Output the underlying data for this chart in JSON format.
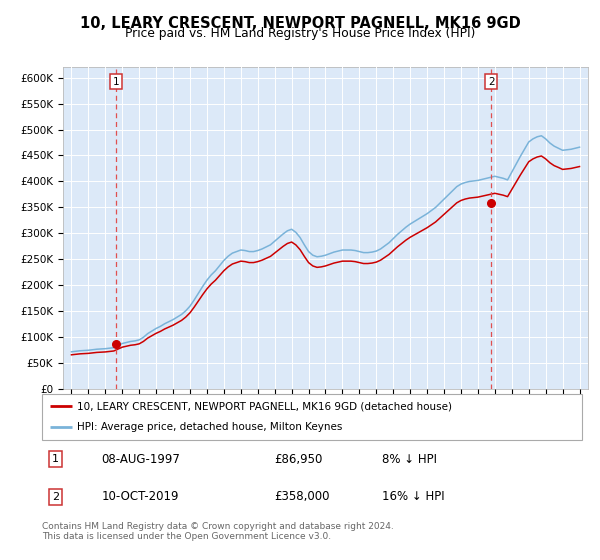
{
  "title": "10, LEARY CRESCENT, NEWPORT PAGNELL, MK16 9GD",
  "subtitle": "Price paid vs. HM Land Registry's House Price Index (HPI)",
  "ylabel_ticks": [
    "£0",
    "£50K",
    "£100K",
    "£150K",
    "£200K",
    "£250K",
    "£300K",
    "£350K",
    "£400K",
    "£450K",
    "£500K",
    "£550K",
    "£600K"
  ],
  "ytick_values": [
    0,
    50000,
    100000,
    150000,
    200000,
    250000,
    300000,
    350000,
    400000,
    450000,
    500000,
    550000,
    600000
  ],
  "xlim_start": 1994.5,
  "xlim_end": 2025.5,
  "ylim": [
    0,
    620000
  ],
  "sale1_year": 1997.61,
  "sale1_price": 86950,
  "sale2_year": 2019.78,
  "sale2_price": 358000,
  "sale1_label": "1",
  "sale2_label": "2",
  "legend_line1": "10, LEARY CRESCENT, NEWPORT PAGNELL, MK16 9GD (detached house)",
  "legend_line2": "HPI: Average price, detached house, Milton Keynes",
  "table_row1": [
    "1",
    "08-AUG-1997",
    "£86,950",
    "8% ↓ HPI"
  ],
  "table_row2": [
    "2",
    "10-OCT-2019",
    "£358,000",
    "16% ↓ HPI"
  ],
  "footer": "Contains HM Land Registry data © Crown copyright and database right 2024.\nThis data is licensed under the Open Government Licence v3.0.",
  "plot_bg_color": "#dce9f8",
  "red_line_color": "#cc0000",
  "blue_line_color": "#7ab3d9",
  "dashed_line_color": "#e05050",
  "grid_color": "#ffffff",
  "sale_dot_color": "#cc0000",
  "hpi_years": [
    1995.0,
    1995.25,
    1995.5,
    1995.75,
    1996.0,
    1996.25,
    1996.5,
    1996.75,
    1997.0,
    1997.25,
    1997.5,
    1997.75,
    1998.0,
    1998.25,
    1998.5,
    1998.75,
    1999.0,
    1999.25,
    1999.5,
    1999.75,
    2000.0,
    2000.25,
    2000.5,
    2000.75,
    2001.0,
    2001.25,
    2001.5,
    2001.75,
    2002.0,
    2002.25,
    2002.5,
    2002.75,
    2003.0,
    2003.25,
    2003.5,
    2003.75,
    2004.0,
    2004.25,
    2004.5,
    2004.75,
    2005.0,
    2005.25,
    2005.5,
    2005.75,
    2006.0,
    2006.25,
    2006.5,
    2006.75,
    2007.0,
    2007.25,
    2007.5,
    2007.75,
    2008.0,
    2008.25,
    2008.5,
    2008.75,
    2009.0,
    2009.25,
    2009.5,
    2009.75,
    2010.0,
    2010.25,
    2010.5,
    2010.75,
    2011.0,
    2011.25,
    2011.5,
    2011.75,
    2012.0,
    2012.25,
    2012.5,
    2012.75,
    2013.0,
    2013.25,
    2013.5,
    2013.75,
    2014.0,
    2014.25,
    2014.5,
    2014.75,
    2015.0,
    2015.25,
    2015.5,
    2015.75,
    2016.0,
    2016.25,
    2016.5,
    2016.75,
    2017.0,
    2017.25,
    2017.5,
    2017.75,
    2018.0,
    2018.25,
    2018.5,
    2018.75,
    2019.0,
    2019.25,
    2019.5,
    2019.75,
    2020.0,
    2020.25,
    2020.5,
    2020.75,
    2021.0,
    2021.25,
    2021.5,
    2021.75,
    2022.0,
    2022.25,
    2022.5,
    2022.75,
    2023.0,
    2023.25,
    2023.5,
    2023.75,
    2024.0,
    2024.25,
    2024.5,
    2024.75,
    2025.0
  ],
  "hpi_values": [
    72000,
    73000,
    74000,
    74500,
    75000,
    76000,
    77000,
    77500,
    78000,
    79000,
    80000,
    84000,
    88000,
    90000,
    92000,
    93000,
    95000,
    100000,
    107000,
    112000,
    117000,
    121000,
    126000,
    130000,
    134000,
    139000,
    144000,
    151000,
    160000,
    172000,
    185000,
    198000,
    210000,
    220000,
    228000,
    238000,
    248000,
    256000,
    262000,
    265000,
    268000,
    267000,
    265000,
    265000,
    267000,
    270000,
    274000,
    278000,
    285000,
    292000,
    299000,
    305000,
    308000,
    302000,
    292000,
    278000,
    265000,
    258000,
    255000,
    256000,
    258000,
    261000,
    264000,
    266000,
    268000,
    268000,
    268000,
    267000,
    265000,
    263000,
    263000,
    264000,
    266000,
    270000,
    276000,
    282000,
    290000,
    298000,
    305000,
    312000,
    318000,
    323000,
    328000,
    333000,
    338000,
    344000,
    350000,
    358000,
    366000,
    374000,
    382000,
    390000,
    395000,
    398000,
    400000,
    401000,
    402000,
    404000,
    406000,
    408000,
    410000,
    408000,
    406000,
    403000,
    418000,
    433000,
    448000,
    462000,
    476000,
    482000,
    486000,
    488000,
    482000,
    474000,
    468000,
    464000,
    460000,
    461000,
    462000,
    464000,
    466000
  ],
  "red_years": [
    1995.0,
    1995.25,
    1995.5,
    1995.75,
    1996.0,
    1996.25,
    1996.5,
    1996.75,
    1997.0,
    1997.25,
    1997.5,
    1997.75,
    1998.0,
    1998.25,
    1998.5,
    1998.75,
    1999.0,
    1999.25,
    1999.5,
    1999.75,
    2000.0,
    2000.25,
    2000.5,
    2000.75,
    2001.0,
    2001.25,
    2001.5,
    2001.75,
    2002.0,
    2002.25,
    2002.5,
    2002.75,
    2003.0,
    2003.25,
    2003.5,
    2003.75,
    2004.0,
    2004.25,
    2004.5,
    2004.75,
    2005.0,
    2005.25,
    2005.5,
    2005.75,
    2006.0,
    2006.25,
    2006.5,
    2006.75,
    2007.0,
    2007.25,
    2007.5,
    2007.75,
    2008.0,
    2008.25,
    2008.5,
    2008.75,
    2009.0,
    2009.25,
    2009.5,
    2009.75,
    2010.0,
    2010.25,
    2010.5,
    2010.75,
    2011.0,
    2011.25,
    2011.5,
    2011.75,
    2012.0,
    2012.25,
    2012.5,
    2012.75,
    2013.0,
    2013.25,
    2013.5,
    2013.75,
    2014.0,
    2014.25,
    2014.5,
    2014.75,
    2015.0,
    2015.25,
    2015.5,
    2015.75,
    2016.0,
    2016.25,
    2016.5,
    2016.75,
    2017.0,
    2017.25,
    2017.5,
    2017.75,
    2018.0,
    2018.25,
    2018.5,
    2018.75,
    2019.0,
    2019.25,
    2019.5,
    2019.75,
    2020.0,
    2020.25,
    2020.5,
    2020.75,
    2021.0,
    2021.25,
    2021.5,
    2021.75,
    2022.0,
    2022.25,
    2022.5,
    2022.75,
    2023.0,
    2023.25,
    2023.5,
    2023.75,
    2024.0,
    2024.25,
    2024.5,
    2024.75,
    2025.0
  ],
  "red_values": [
    66240,
    67160,
    68080,
    68540,
    69000,
    69920,
    70840,
    71300,
    71760,
    72680,
    73600,
    77280,
    80960,
    82800,
    84640,
    85560,
    87360,
    92000,
    98440,
    103040,
    107640,
    111320,
    115920,
    119600,
    123280,
    127880,
    132480,
    138920,
    147200,
    158240,
    170200,
    182160,
    193200,
    202400,
    209760,
    218960,
    228160,
    235520,
    241040,
    243800,
    246560,
    245640,
    243800,
    243800,
    245640,
    248400,
    252080,
    255760,
    262200,
    268640,
    275080,
    280600,
    283360,
    277840,
    268640,
    255760,
    243800,
    237360,
    234600,
    235520,
    237360,
    240120,
    242880,
    244720,
    246560,
    246560,
    246560,
    245640,
    243800,
    241960,
    241960,
    242880,
    244720,
    248400,
    253920,
    259440,
    266800,
    274160,
    280600,
    287040,
    292560,
    297160,
    301760,
    306360,
    310960,
    316480,
    322000,
    329360,
    336720,
    344080,
    351440,
    358800,
    363400,
    366160,
    368000,
    368920,
    369840,
    371680,
    373520,
    375360,
    377200,
    375360,
    373520,
    370760,
    384560,
    398360,
    412160,
    425040,
    437920,
    443440,
    447120,
    449040,
    443440,
    436000,
    430480,
    427000,
    423200,
    424120,
    425040,
    426880,
    428720
  ]
}
